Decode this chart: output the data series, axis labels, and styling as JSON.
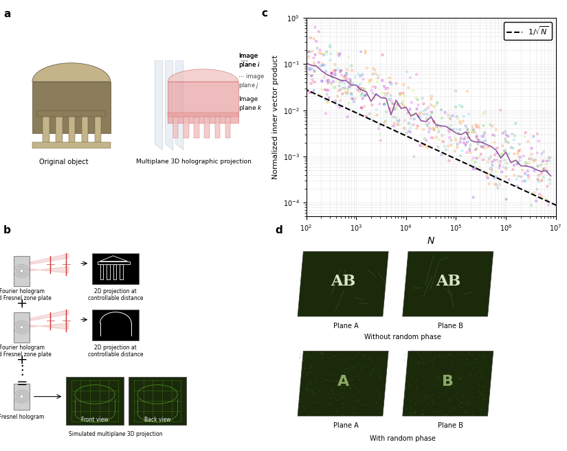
{
  "panel_labels": [
    "a",
    "b",
    "c",
    "d"
  ],
  "panel_label_fontsize": 11,
  "panel_label_weight": "bold",
  "background_color": "#ffffff",
  "plot_c": {
    "xlim": [
      100.0,
      10000000.0
    ],
    "ylim": [
      5e-05,
      1.0
    ],
    "xlabel": "N",
    "ylabel": "Normalized inner vector product",
    "xlabel_style": "italic",
    "ylabel_fontsize": 8,
    "xlabel_fontsize": 10,
    "grid": true,
    "grid_color": "#cccccc",
    "scatter_colors": [
      "#e6194b",
      "#3cb44b",
      "#4363d8",
      "#f58231",
      "#911eb4",
      "#42d4f4",
      "#f032e6",
      "#bfef45",
      "#469990",
      "#dcbeff"
    ],
    "dashed_line_label": "1/√N",
    "dashed_line_color": "#000000",
    "scatter_line_color": "#7b2d8b",
    "n_scatter_points": 800,
    "seed": 42
  },
  "text_labels": {
    "a_original": "Original object",
    "a_multiplane": "Multiplane 3D holographic projection",
    "a_plane_i": "Image\nplane i",
    "a_plane_j": "image\nplane j",
    "a_plane_k": "Image\nplane k",
    "b_label1": "Fourier hologram\nand Fresnel zone plate",
    "b_label2": "2D projection at\ncontrollable distance",
    "b_label3": "Fourier hologram\nand Fresnel zone plate",
    "b_label4": "2D projection at\ncontrollable distance",
    "b_label5": "Fresnel hologram",
    "b_label6": "Simulated multiplane 3D projection",
    "b_front": "Front view",
    "b_back": "Back view",
    "d_plane_a1": "Plane A",
    "d_plane_b1": "Plane B",
    "d_without": "Without random phase",
    "d_plane_a2": "Plane A",
    "d_plane_b2": "Plane B",
    "d_with": "With random phase"
  },
  "colors": {
    "building_dark": "#8b7d5a",
    "building_light": "#c4b48a",
    "pink_hologram": "#e8a0a0",
    "pink_hologram_light": "#f0c0c0",
    "plane_color": "#c8d8e8",
    "dark_green": "#1a2a0a",
    "medium_green": "#2d4a0d",
    "light_green_letter": "#8ab870",
    "hologram_gray": "#a0a0a0",
    "black": "#000000",
    "white": "#ffffff",
    "red_beam": "#cc3333",
    "purple_line": "#7b2d8b"
  }
}
